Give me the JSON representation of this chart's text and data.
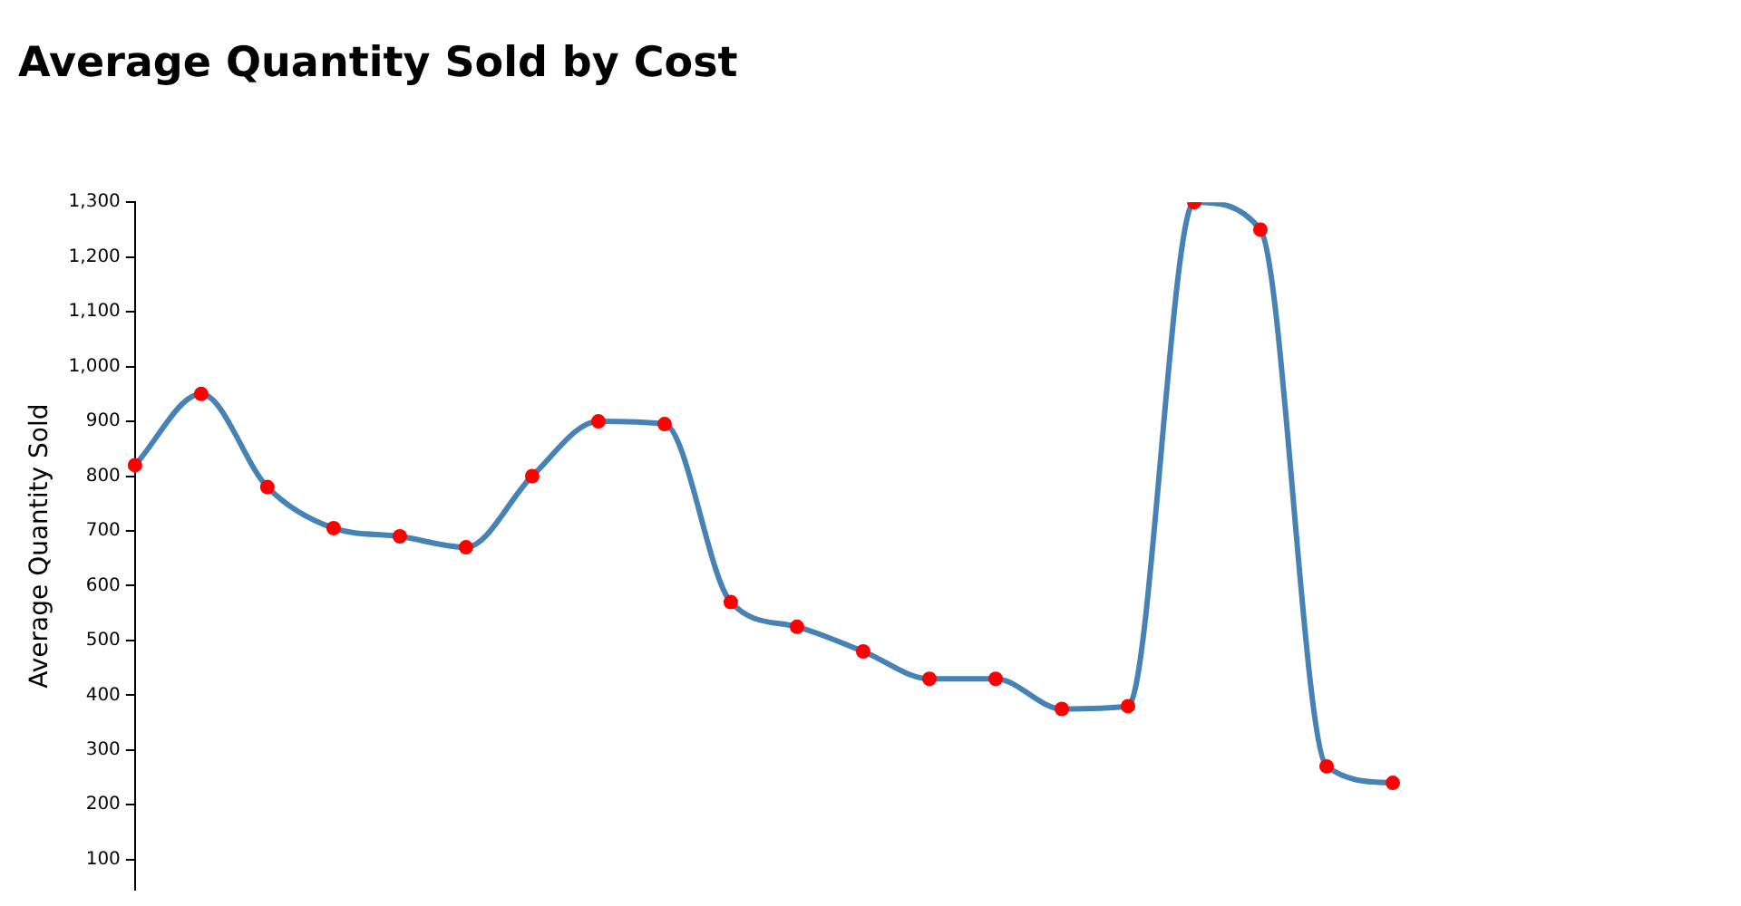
{
  "chart_data": {
    "type": "line",
    "title": "Average Quantity Sold by Cost",
    "ylabel": "Average Quantity Sold",
    "categories": [
      null,
      null,
      null,
      null,
      null,
      null,
      null,
      null,
      null,
      null,
      null,
      null,
      null,
      null,
      null,
      null,
      null,
      null,
      null,
      null
    ],
    "series": [
      {
        "color": "#4682b4",
        "colors": [
          "#ff0000",
          "#ff0000",
          "#ff0000",
          "#ff0000",
          "#ff0000",
          "#ff0000",
          "#ff0000",
          "#ff0000",
          "#ff0000",
          "#ff0000",
          "#ff0000",
          "#ff0000",
          "#ff0000",
          "#ff0000",
          "#ff0000",
          "#ff0000",
          "#ff0000",
          "#ff0000",
          "#ff0000",
          "#ff0000"
        ],
        "values": [
          820,
          950,
          780,
          705,
          690,
          670,
          800,
          900,
          895,
          570,
          525,
          480,
          430,
          430,
          375,
          380,
          1300,
          1250,
          270,
          240
        ]
      }
    ],
    "marker": "circle",
    "ylim": [
      45,
      1300
    ],
    "yticks": [
      {
        "value": 100,
        "label": "100"
      },
      {
        "value": 200,
        "label": "200"
      },
      {
        "value": 300,
        "label": "300"
      },
      {
        "value": 400,
        "label": "400"
      },
      {
        "value": 500,
        "label": "500"
      },
      {
        "value": 600,
        "label": "600"
      },
      {
        "value": 700,
        "label": "700"
      },
      {
        "value": 800,
        "label": "800"
      },
      {
        "value": 900,
        "label": "900"
      },
      {
        "value": 1000,
        "label": "1,000"
      },
      {
        "value": 1100,
        "label": "1,100"
      },
      {
        "value": 1200,
        "label": "1,200"
      },
      {
        "value": 1300,
        "label": "1,300"
      }
    ],
    "grid": false,
    "legend": false,
    "tick_labels": "y"
  }
}
